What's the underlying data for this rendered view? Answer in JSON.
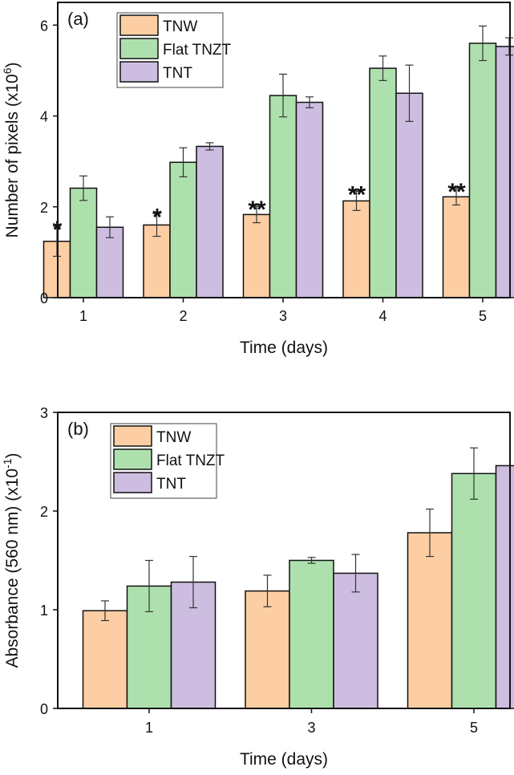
{
  "colors": {
    "TNW": "#fdcea3",
    "Flat TNZT": "#aee0ae",
    "TNT": "#cdbde0",
    "axis": "#111111"
  },
  "chart_data": [
    {
      "type": "bar",
      "panel_label": "(a)",
      "xlabel": "Time (days)",
      "ylabel": "Number of pixels (x10",
      "ylabel_sup": "6",
      "ylabel_end": ")",
      "categories": [
        "1",
        "2",
        "3",
        "4",
        "5"
      ],
      "ylim": [
        0,
        6.5
      ],
      "yticks": [
        "0",
        "2",
        "4",
        "6"
      ],
      "ytick_values": [
        0,
        2,
        4,
        6
      ],
      "legend_position": "top-left",
      "series": [
        {
          "name": "TNW",
          "values": [
            1.24,
            1.6,
            1.83,
            2.13,
            2.22
          ],
          "errors": [
            0.33,
            0.25,
            0.18,
            0.21,
            0.18
          ]
        },
        {
          "name": "Flat TNZT",
          "values": [
            2.41,
            2.98,
            4.45,
            5.05,
            5.6
          ],
          "errors": [
            0.27,
            0.32,
            0.47,
            0.27,
            0.38
          ]
        },
        {
          "name": "TNT",
          "values": [
            1.55,
            3.33,
            4.3,
            4.5,
            5.53
          ],
          "errors": [
            0.23,
            0.08,
            0.12,
            0.62,
            0.19
          ]
        }
      ],
      "annotations": [
        {
          "category": "1",
          "series": "TNW",
          "text": "*"
        },
        {
          "category": "2",
          "series": "TNW",
          "text": "*"
        },
        {
          "category": "3",
          "series": "TNW",
          "text": "**"
        },
        {
          "category": "4",
          "series": "TNW",
          "text": "**"
        },
        {
          "category": "5",
          "series": "TNW",
          "text": "**"
        }
      ]
    },
    {
      "type": "bar",
      "panel_label": "(b)",
      "xlabel": "Time (days)",
      "ylabel": "Absorbance (560 nm) (x10",
      "ylabel_sup": "-1",
      "ylabel_end": ")",
      "categories": [
        "1",
        "3",
        "5"
      ],
      "ylim": [
        0,
        3
      ],
      "yticks": [
        "0",
        "1",
        "2",
        "3"
      ],
      "ytick_values": [
        0,
        1,
        2,
        3
      ],
      "legend_position": "top-left",
      "series": [
        {
          "name": "TNW",
          "values": [
            0.99,
            1.19,
            1.78
          ],
          "errors": [
            0.1,
            0.16,
            0.24
          ]
        },
        {
          "name": "Flat TNZT",
          "values": [
            1.24,
            1.5,
            2.38
          ],
          "errors": [
            0.26,
            0.03,
            0.26
          ]
        },
        {
          "name": "TNT",
          "values": [
            1.28,
            1.37,
            2.46
          ],
          "errors": [
            0.26,
            0.19,
            0.22
          ]
        }
      ],
      "annotations": []
    }
  ]
}
